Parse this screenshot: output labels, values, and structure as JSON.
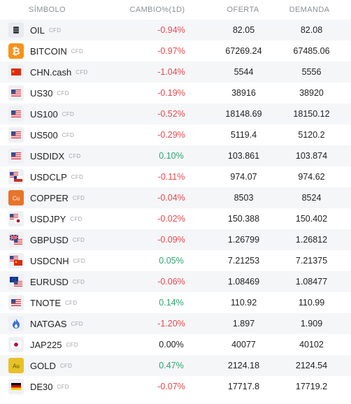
{
  "header": {
    "symbol": "SÍMBOLO",
    "change": "CAMBIO%(1D)",
    "bid": "OFERTA",
    "ask": "DEMANDA"
  },
  "colors": {
    "negative": "#e5484d",
    "positive": "#2ea66f"
  },
  "rows": [
    {
      "symbol": "OIL",
      "tag": "CFD",
      "change": "-0.94%",
      "dir": "neg",
      "bid": "82.05",
      "ask": "82.08",
      "icon": "oil-barrel-icon"
    },
    {
      "symbol": "BITCOIN",
      "tag": "CFD",
      "change": "-0.97%",
      "dir": "neg",
      "bid": "67269.24",
      "ask": "67485.06",
      "icon": "bitcoin-icon"
    },
    {
      "symbol": "CHN.cash",
      "tag": "CFD",
      "change": "-1.04%",
      "dir": "neg",
      "bid": "5544",
      "ask": "5556",
      "icon": "china-flag-icon"
    },
    {
      "symbol": "US30",
      "tag": "CFD",
      "change": "-0.19%",
      "dir": "neg",
      "bid": "38916",
      "ask": "38920",
      "icon": "us-flag-icon"
    },
    {
      "symbol": "US100",
      "tag": "CFD",
      "change": "-0.52%",
      "dir": "neg",
      "bid": "18148.69",
      "ask": "18150.12",
      "icon": "us-flag-icon"
    },
    {
      "symbol": "US500",
      "tag": "CFD",
      "change": "-0.29%",
      "dir": "neg",
      "bid": "5119.4",
      "ask": "5120.2",
      "icon": "us-flag-icon"
    },
    {
      "symbol": "USDIDX",
      "tag": "CFD",
      "change": "0.10%",
      "dir": "pos",
      "bid": "103.861",
      "ask": "103.874",
      "icon": "us-flag-icon"
    },
    {
      "symbol": "USDCLP",
      "tag": "CFD",
      "change": "-0.11%",
      "dir": "neg",
      "bid": "974.07",
      "ask": "974.62",
      "icon": "us-chile-flags-icon"
    },
    {
      "symbol": "COPPER",
      "tag": "CFD",
      "change": "-0.04%",
      "dir": "neg",
      "bid": "8503",
      "ask": "8524",
      "icon": "copper-icon"
    },
    {
      "symbol": "USDJPY",
      "tag": "CFD",
      "change": "-0.02%",
      "dir": "neg",
      "bid": "150.388",
      "ask": "150.402",
      "icon": "us-japan-flags-icon"
    },
    {
      "symbol": "GBPUSD",
      "tag": "CFD",
      "change": "-0.09%",
      "dir": "neg",
      "bid": "1.26799",
      "ask": "1.26812",
      "icon": "uk-us-flags-icon"
    },
    {
      "symbol": "USDCNH",
      "tag": "CFD",
      "change": "0.05%",
      "dir": "pos",
      "bid": "7.21253",
      "ask": "7.21375",
      "icon": "us-china-flags-icon"
    },
    {
      "symbol": "EURUSD",
      "tag": "CFD",
      "change": "-0.06%",
      "dir": "neg",
      "bid": "1.08469",
      "ask": "1.08477",
      "icon": "eu-us-flags-icon"
    },
    {
      "symbol": "TNOTE",
      "tag": "CFD",
      "change": "0.14%",
      "dir": "pos",
      "bid": "110.92",
      "ask": "110.99",
      "icon": "us-flag-icon"
    },
    {
      "symbol": "NATGAS",
      "tag": "CFD",
      "change": "-1.20%",
      "dir": "neg",
      "bid": "1.897",
      "ask": "1.909",
      "icon": "gas-flame-icon"
    },
    {
      "symbol": "JAP225",
      "tag": "CFD",
      "change": "0.00%",
      "dir": "zero",
      "bid": "40077",
      "ask": "40102",
      "icon": "japan-flag-icon"
    },
    {
      "symbol": "GOLD",
      "tag": "CFD",
      "change": "0.47%",
      "dir": "pos",
      "bid": "2124.18",
      "ask": "2124.54",
      "icon": "gold-icon"
    },
    {
      "symbol": "DE30",
      "tag": "CFD",
      "change": "-0.07%",
      "dir": "neg",
      "bid": "17717.8",
      "ask": "17719.2",
      "icon": "germany-flag-icon"
    }
  ],
  "icon_text": {
    "copper": "Cu",
    "gold": "Au"
  }
}
